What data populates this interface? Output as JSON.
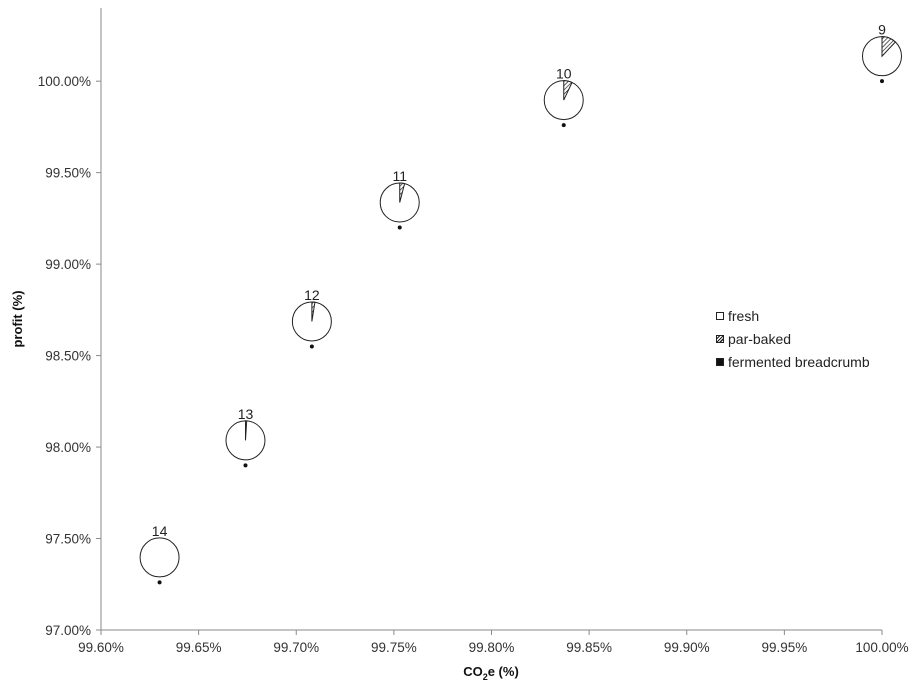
{
  "chart_data": {
    "type": "scatter",
    "xlabel_main": "CO",
    "xlabel_sub": "2",
    "xlabel_rest": "e (%)",
    "ylabel": "profit (%)",
    "xlim": [
      99.6,
      100.0
    ],
    "ylim": [
      97.0,
      100.4
    ],
    "x_ticks": [
      {
        "value": 99.6,
        "label": "99.60%"
      },
      {
        "value": 99.65,
        "label": "99.65%"
      },
      {
        "value": 99.7,
        "label": "99.70%"
      },
      {
        "value": 99.75,
        "label": "99.75%"
      },
      {
        "value": 99.8,
        "label": "99.80%"
      },
      {
        "value": 99.85,
        "label": "99.85%"
      },
      {
        "value": 99.9,
        "label": "99.90%"
      },
      {
        "value": 99.95,
        "label": "99.95%"
      },
      {
        "value": 100.0,
        "label": "100.00%"
      }
    ],
    "y_ticks": [
      {
        "value": 97.0,
        "label": "97.00%"
      },
      {
        "value": 97.5,
        "label": "97.50%"
      },
      {
        "value": 98.0,
        "label": "98.00%"
      },
      {
        "value": 98.5,
        "label": "98.50%"
      },
      {
        "value": 99.0,
        "label": "99.00%"
      },
      {
        "value": 99.5,
        "label": "99.50%"
      },
      {
        "value": 100.0,
        "label": "100.00%"
      }
    ],
    "grid": false,
    "legend_position": "right",
    "legend": [
      {
        "name": "fresh",
        "style": "empty"
      },
      {
        "name": "par-baked",
        "style": "hatched"
      },
      {
        "name": "fermented breadcrumb",
        "style": "solid"
      }
    ],
    "points": [
      {
        "label": "14",
        "x": 99.63,
        "y": 97.26,
        "par_baked_share": 0.0
      },
      {
        "label": "13",
        "x": 99.674,
        "y": 97.9,
        "par_baked_share": 0.01
      },
      {
        "label": "12",
        "x": 99.708,
        "y": 98.55,
        "par_baked_share": 0.025
      },
      {
        "label": "11",
        "x": 99.753,
        "y": 99.2,
        "par_baked_share": 0.04
      },
      {
        "label": "10",
        "x": 99.837,
        "y": 99.76,
        "par_baked_share": 0.07
      },
      {
        "label": "9",
        "x": 100.0,
        "y": 100.0,
        "par_baked_share": 0.12
      }
    ]
  }
}
